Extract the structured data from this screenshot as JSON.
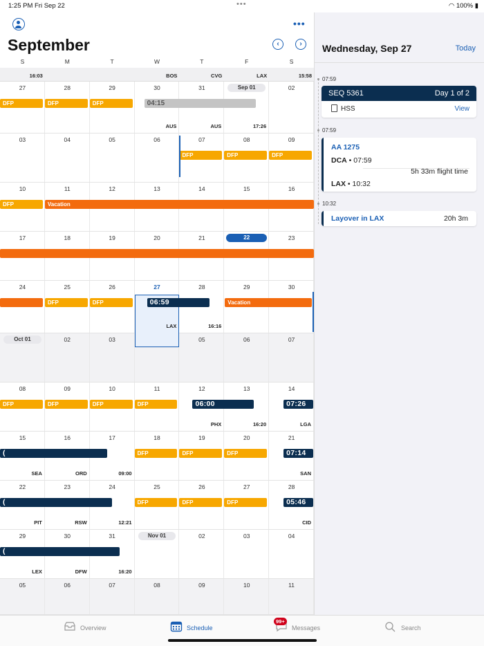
{
  "status": {
    "time": "1:25 PM",
    "date": "Fri Sep 22",
    "battery": "100%"
  },
  "header": {
    "month": "September",
    "prev_icon": "‹",
    "next_icon": "›"
  },
  "weekdays": [
    "S",
    "M",
    "T",
    "W",
    "T",
    "F",
    "S"
  ],
  "pre_row": [
    "16:03",
    "",
    "",
    "BOS",
    "CVG",
    "LAX",
    "15:58"
  ],
  "weeks": [
    {
      "days": [
        "27",
        "28",
        "29",
        "30",
        "31",
        "Sep 01",
        "02"
      ]
    },
    {
      "days": [
        "03",
        "04",
        "05",
        "06",
        "07",
        "08",
        "09"
      ]
    },
    {
      "days": [
        "10",
        "11",
        "12",
        "13",
        "14",
        "15",
        "16"
      ]
    },
    {
      "days": [
        "17",
        "18",
        "19",
        "20",
        "21",
        "22",
        "23"
      ]
    },
    {
      "days": [
        "24",
        "25",
        "26",
        "27",
        "28",
        "29",
        "30"
      ]
    },
    {
      "days": [
        "Oct 01",
        "02",
        "03",
        "04",
        "05",
        "06",
        "07"
      ]
    },
    {
      "days": [
        "08",
        "09",
        "10",
        "11",
        "12",
        "13",
        "14"
      ]
    },
    {
      "days": [
        "15",
        "16",
        "17",
        "18",
        "19",
        "20",
        "21"
      ]
    },
    {
      "days": [
        "22",
        "23",
        "24",
        "25",
        "26",
        "27",
        "28"
      ]
    },
    {
      "days": [
        "29",
        "30",
        "31",
        "Nov 01",
        "02",
        "03",
        "04"
      ]
    },
    {
      "days": [
        "05",
        "06",
        "07",
        "08",
        "09",
        "10",
        "11"
      ]
    }
  ],
  "labels": {
    "dfp": "DFP",
    "vacation": "Vacation",
    "gray_time": "04:15",
    "aus1": "AUS",
    "aus2": "AUS",
    "t1726": "17:26",
    "t0659": "06:59",
    "lax": "LAX",
    "t1616": "16:16",
    "t0600": "06:00",
    "t0726": "07:26",
    "phx": "PHX",
    "t1620": "16:20",
    "lga": "LGA",
    "t0714": "07:14",
    "sea": "SEA",
    "ord": "ORD",
    "t0900": "09:00",
    "san": "SAN",
    "t0546": "05:46",
    "pit": "PIT",
    "rsw": "RSW",
    "t1221": "12:21",
    "cid": "CID",
    "lex": "LEX",
    "dfw": "DFW",
    "t1620b": "16:20",
    "paren": "("
  },
  "detail": {
    "title": "Wednesday, Sep 27",
    "today_label": "Today",
    "t1": "07:59",
    "t2": "07:59",
    "t3": "10:32",
    "seq": {
      "title": "SEQ 5361",
      "day": "Day 1 of 2",
      "doc": "HSS",
      "view": "View"
    },
    "flight": {
      "number": "AA 1275",
      "dep_code": "DCA",
      "dep_time": " • 07:59",
      "duration": "5h 33m flight time",
      "arr_code": "LAX",
      "arr_time": " • 10:32"
    },
    "layover": {
      "title": "Layover in LAX",
      "duration": "20h 3m"
    }
  },
  "tabs": {
    "overview": "Overview",
    "schedule": "Schedule",
    "messages": "Messages",
    "search": "Search",
    "badge": "99+"
  },
  "colors": {
    "accent": "#1a5fb4",
    "navy": "#0b2e50",
    "dfp": "#f7a700",
    "vacation": "#f36b0e"
  }
}
